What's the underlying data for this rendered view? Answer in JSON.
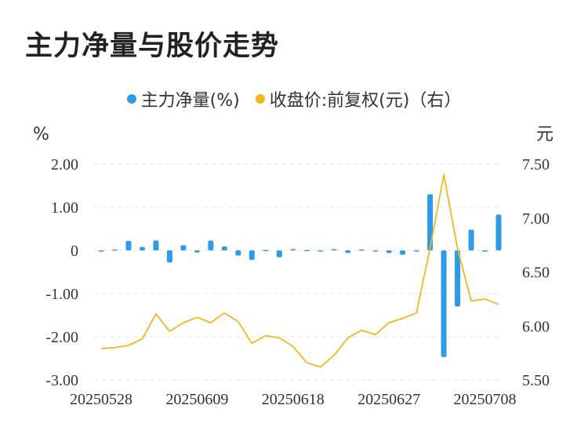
{
  "title": "主力净量与股价走势",
  "legend": [
    {
      "label": "主力净量(%)",
      "color": "#2e9be8"
    },
    {
      "label": "收盘价:前复权(元)（右）",
      "color": "#f3b61f"
    }
  ],
  "chart_data": {
    "type": "bar+line",
    "left_unit": "%",
    "right_unit": "元",
    "y_left_ticks": [
      "2.00",
      "1.00",
      "0",
      "-1.00",
      "-2.00",
      "-3.00"
    ],
    "y_left_range": [
      -3,
      2
    ],
    "y_right_ticks": [
      "7.50",
      "7.00",
      "6.50",
      "6.00",
      "5.50"
    ],
    "y_right_range": [
      5.5,
      7.5
    ],
    "x_tick_labels": [
      "20250528",
      "20250609",
      "20250618",
      "20250627",
      "20250708"
    ],
    "x_tick_indices": [
      0,
      7,
      14,
      21,
      28
    ],
    "series": [
      {
        "name": "主力净量(%)",
        "type": "bar",
        "color": "#2e9be8",
        "values": [
          -0.03,
          0.02,
          0.22,
          0.08,
          0.23,
          -0.28,
          0.12,
          -0.05,
          0.23,
          0.09,
          -0.12,
          -0.22,
          0.01,
          -0.16,
          0.03,
          0.01,
          -0.02,
          0.03,
          -0.06,
          0.02,
          -0.01,
          -0.06,
          -0.1,
          0.0,
          1.3,
          -2.47,
          -1.3,
          0.48,
          -0.03,
          0.83
        ]
      },
      {
        "name": "收盘价:前复权(元)（右）",
        "type": "line",
        "color": "#f3b61f",
        "values": [
          5.79,
          5.8,
          5.82,
          5.88,
          6.11,
          5.95,
          6.03,
          6.08,
          6.03,
          6.12,
          6.04,
          5.84,
          5.91,
          5.89,
          5.81,
          5.66,
          5.62,
          5.73,
          5.89,
          5.96,
          5.92,
          6.03,
          6.07,
          6.12,
          6.72,
          7.4,
          6.72,
          6.23,
          6.25,
          6.2
        ]
      }
    ]
  }
}
